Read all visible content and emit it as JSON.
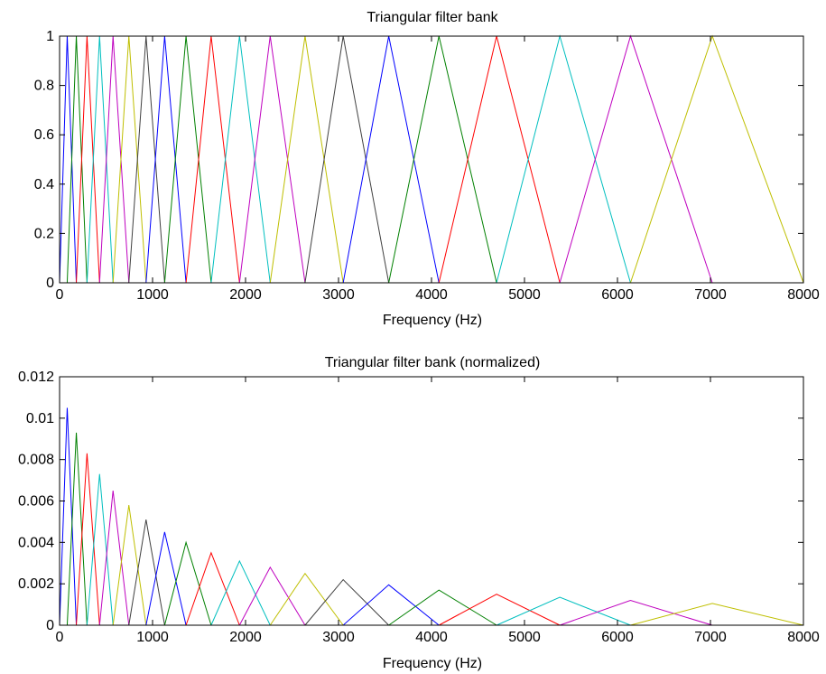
{
  "figure": {
    "background": "#ffffff",
    "filter_color_cycle": [
      "#0000ff",
      "#008000",
      "#ff0000",
      "#00bfbf",
      "#bf00bf",
      "#bfbf00",
      "#404040"
    ]
  },
  "chart_data": [
    {
      "type": "line",
      "title": "Triangular filter bank",
      "xlabel": "Frequency (Hz)",
      "ylabel": "",
      "xlim": [
        0,
        8000
      ],
      "ylim": [
        0,
        1
      ],
      "grid": false,
      "legend": "none",
      "xticks": [
        "0",
        "1000",
        "2000",
        "3000",
        "4000",
        "5000",
        "6000",
        "7000",
        "8000"
      ],
      "yticks": [
        "0",
        "0.2",
        "0.4",
        "0.6",
        "0.8",
        "1"
      ],
      "center_frequencies_hz": [
        0,
        82,
        180,
        295,
        430,
        575,
        745,
        930,
        1130,
        1360,
        1630,
        1935,
        2265,
        2640,
        3050,
        3540,
        4080,
        4700,
        5380,
        6140,
        7020,
        8000
      ],
      "series": [
        {
          "values": [
            [
              0,
              0
            ],
            [
              82,
              1
            ],
            [
              180,
              0
            ]
          ]
        },
        {
          "values": [
            [
              82,
              0
            ],
            [
              180,
              1
            ],
            [
              295,
              0
            ]
          ]
        },
        {
          "values": [
            [
              180,
              0
            ],
            [
              295,
              1
            ],
            [
              430,
              0
            ]
          ]
        },
        {
          "values": [
            [
              295,
              0
            ],
            [
              430,
              1
            ],
            [
              575,
              0
            ]
          ]
        },
        {
          "values": [
            [
              430,
              0
            ],
            [
              575,
              1
            ],
            [
              745,
              0
            ]
          ]
        },
        {
          "values": [
            [
              575,
              0
            ],
            [
              745,
              1
            ],
            [
              930,
              0
            ]
          ]
        },
        {
          "values": [
            [
              745,
              0
            ],
            [
              930,
              1
            ],
            [
              1130,
              0
            ]
          ]
        },
        {
          "values": [
            [
              930,
              0
            ],
            [
              1130,
              1
            ],
            [
              1360,
              0
            ]
          ]
        },
        {
          "values": [
            [
              1130,
              0
            ],
            [
              1360,
              1
            ],
            [
              1630,
              0
            ]
          ]
        },
        {
          "values": [
            [
              1360,
              0
            ],
            [
              1630,
              1
            ],
            [
              1935,
              0
            ]
          ]
        },
        {
          "values": [
            [
              1630,
              0
            ],
            [
              1935,
              1
            ],
            [
              2265,
              0
            ]
          ]
        },
        {
          "values": [
            [
              1935,
              0
            ],
            [
              2265,
              1
            ],
            [
              2640,
              0
            ]
          ]
        },
        {
          "values": [
            [
              2265,
              0
            ],
            [
              2640,
              1
            ],
            [
              3050,
              0
            ]
          ]
        },
        {
          "values": [
            [
              2640,
              0
            ],
            [
              3050,
              1
            ],
            [
              3540,
              0
            ]
          ]
        },
        {
          "values": [
            [
              3050,
              0
            ],
            [
              3540,
              1
            ],
            [
              4080,
              0
            ]
          ]
        },
        {
          "values": [
            [
              3540,
              0
            ],
            [
              4080,
              1
            ],
            [
              4700,
              0
            ]
          ]
        },
        {
          "values": [
            [
              4080,
              0
            ],
            [
              4700,
              1
            ],
            [
              5380,
              0
            ]
          ]
        },
        {
          "values": [
            [
              4700,
              0
            ],
            [
              5380,
              1
            ],
            [
              6140,
              0
            ]
          ]
        },
        {
          "values": [
            [
              5380,
              0
            ],
            [
              6140,
              1
            ],
            [
              7020,
              0
            ]
          ]
        },
        {
          "values": [
            [
              6140,
              0
            ],
            [
              7020,
              1
            ],
            [
              8000,
              0
            ]
          ]
        }
      ]
    },
    {
      "type": "line",
      "title": "Triangular filter bank (normalized)",
      "xlabel": "Frequency (Hz)",
      "ylabel": "",
      "xlim": [
        0,
        8000
      ],
      "ylim": [
        0,
        0.012
      ],
      "grid": false,
      "legend": "none",
      "xticks": [
        "0",
        "1000",
        "2000",
        "3000",
        "4000",
        "5000",
        "6000",
        "7000",
        "8000"
      ],
      "yticks": [
        "0",
        "0.002",
        "0.004",
        "0.006",
        "0.008",
        "0.01",
        "0.012"
      ],
      "peak_values": [
        0.0105,
        0.0093,
        0.0083,
        0.0073,
        0.0065,
        0.0058,
        0.0051,
        0.0045,
        0.004,
        0.0035,
        0.0031,
        0.0028,
        0.0025,
        0.0022,
        0.00195,
        0.0017,
        0.0015,
        0.00135,
        0.0012,
        0.00105
      ],
      "series": [
        {
          "values": [
            [
              0,
              0
            ],
            [
              82,
              0.0105
            ],
            [
              180,
              0
            ]
          ]
        },
        {
          "values": [
            [
              82,
              0
            ],
            [
              180,
              0.0093
            ],
            [
              295,
              0
            ]
          ]
        },
        {
          "values": [
            [
              180,
              0
            ],
            [
              295,
              0.0083
            ],
            [
              430,
              0
            ]
          ]
        },
        {
          "values": [
            [
              295,
              0
            ],
            [
              430,
              0.0073
            ],
            [
              575,
              0
            ]
          ]
        },
        {
          "values": [
            [
              430,
              0
            ],
            [
              575,
              0.0065
            ],
            [
              745,
              0
            ]
          ]
        },
        {
          "values": [
            [
              575,
              0
            ],
            [
              745,
              0.0058
            ],
            [
              930,
              0
            ]
          ]
        },
        {
          "values": [
            [
              745,
              0
            ],
            [
              930,
              0.0051
            ],
            [
              1130,
              0
            ]
          ]
        },
        {
          "values": [
            [
              930,
              0
            ],
            [
              1130,
              0.0045
            ],
            [
              1360,
              0
            ]
          ]
        },
        {
          "values": [
            [
              1130,
              0
            ],
            [
              1360,
              0.004
            ],
            [
              1630,
              0
            ]
          ]
        },
        {
          "values": [
            [
              1360,
              0
            ],
            [
              1630,
              0.0035
            ],
            [
              1935,
              0
            ]
          ]
        },
        {
          "values": [
            [
              1630,
              0
            ],
            [
              1935,
              0.0031
            ],
            [
              2265,
              0
            ]
          ]
        },
        {
          "values": [
            [
              1935,
              0
            ],
            [
              2265,
              0.0028
            ],
            [
              2640,
              0
            ]
          ]
        },
        {
          "values": [
            [
              2265,
              0
            ],
            [
              2640,
              0.0025
            ],
            [
              3050,
              0
            ]
          ]
        },
        {
          "values": [
            [
              2640,
              0
            ],
            [
              3050,
              0.0022
            ],
            [
              3540,
              0
            ]
          ]
        },
        {
          "values": [
            [
              3050,
              0
            ],
            [
              3540,
              0.00195
            ],
            [
              4080,
              0
            ]
          ]
        },
        {
          "values": [
            [
              3540,
              0
            ],
            [
              4080,
              0.0017
            ],
            [
              4700,
              0
            ]
          ]
        },
        {
          "values": [
            [
              4080,
              0
            ],
            [
              4700,
              0.0015
            ],
            [
              5380,
              0
            ]
          ]
        },
        {
          "values": [
            [
              4700,
              0
            ],
            [
              5380,
              0.00135
            ],
            [
              6140,
              0
            ]
          ]
        },
        {
          "values": [
            [
              5380,
              0
            ],
            [
              6140,
              0.0012
            ],
            [
              7020,
              0
            ]
          ]
        },
        {
          "values": [
            [
              6140,
              0
            ],
            [
              7020,
              0.00105
            ],
            [
              8000,
              0
            ]
          ]
        }
      ]
    }
  ]
}
